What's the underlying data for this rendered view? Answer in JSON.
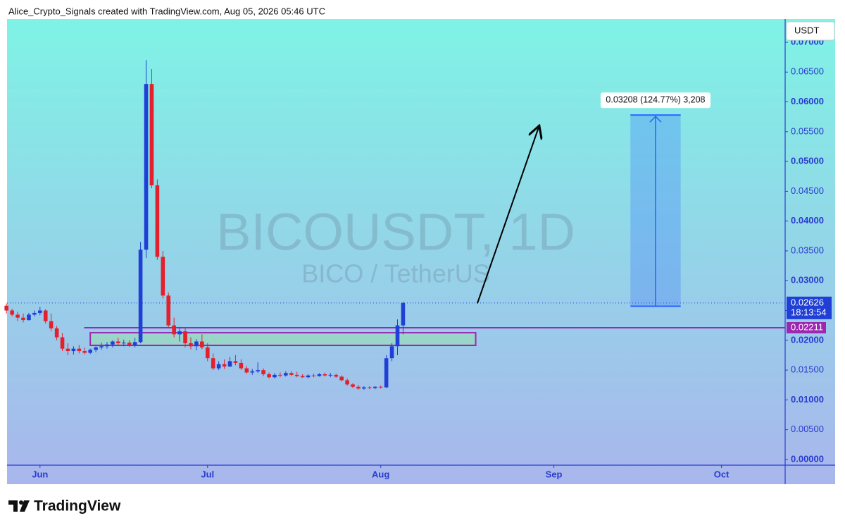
{
  "header": "Alice_Crypto_Signals created with TradingView.com, Aug 05, 2026 05:46 UTC",
  "logo": "TradingView",
  "chart_data": {
    "type": "candlestick",
    "watermark": "BICOUSDT, 1D",
    "watermark_subtitle": "BICO / TetherUS",
    "currency": "USDT",
    "up_color": "#1f3fd6",
    "down_color": "#e3202c",
    "x": [
      -6,
      -5,
      -4,
      -3,
      -2,
      -1,
      0,
      1,
      2,
      3,
      4,
      5,
      6,
      7,
      8,
      9,
      10,
      11,
      12,
      13,
      14,
      15,
      16,
      17,
      18,
      19,
      20,
      21,
      22,
      23,
      24,
      25,
      26,
      27,
      28,
      29,
      30,
      31,
      32,
      33,
      34,
      35,
      36,
      37,
      38,
      39,
      40,
      41,
      42,
      43,
      44,
      45,
      46,
      47,
      48,
      49,
      50,
      51,
      52,
      53,
      54,
      55,
      56,
      57,
      58,
      59,
      60,
      61,
      62,
      63,
      64,
      65
    ],
    "open": [
      0.0258,
      0.025,
      0.0243,
      0.0238,
      0.0234,
      0.0243,
      0.0246,
      0.025,
      0.0232,
      0.022,
      0.0205,
      0.0186,
      0.0182,
      0.0186,
      0.0182,
      0.0179,
      0.0184,
      0.0188,
      0.019,
      0.0193,
      0.0198,
      0.0195,
      0.0196,
      0.0192,
      0.0197,
      0.0352,
      0.063,
      0.046,
      0.034,
      0.0275,
      0.0225,
      0.021,
      0.0215,
      0.0195,
      0.019,
      0.0198,
      0.0188,
      0.017,
      0.0153,
      0.016,
      0.0156,
      0.0165,
      0.0162,
      0.0153,
      0.0146,
      0.0148,
      0.015,
      0.0143,
      0.0138,
      0.0142,
      0.0141,
      0.0145,
      0.0142,
      0.014,
      0.0138,
      0.0141,
      0.014,
      0.0143,
      0.0141,
      0.0142,
      0.0139,
      0.0133,
      0.0126,
      0.0122,
      0.0119,
      0.0121,
      0.012,
      0.0122,
      0.0121,
      0.017,
      0.019,
      0.0225
    ],
    "high": [
      0.0262,
      0.0253,
      0.0248,
      0.0245,
      0.0246,
      0.025,
      0.0256,
      0.0252,
      0.0245,
      0.0224,
      0.0212,
      0.0195,
      0.019,
      0.0192,
      0.0188,
      0.0186,
      0.019,
      0.0196,
      0.0197,
      0.02,
      0.0204,
      0.0201,
      0.02,
      0.0204,
      0.0365,
      0.067,
      0.0655,
      0.047,
      0.035,
      0.028,
      0.0238,
      0.0222,
      0.022,
      0.0205,
      0.0202,
      0.021,
      0.0195,
      0.0178,
      0.0165,
      0.0168,
      0.0172,
      0.0175,
      0.0168,
      0.0157,
      0.0152,
      0.0163,
      0.0153,
      0.0146,
      0.0145,
      0.0146,
      0.0148,
      0.0148,
      0.0147,
      0.0143,
      0.0143,
      0.0144,
      0.0145,
      0.0146,
      0.0145,
      0.0144,
      0.0141,
      0.0136,
      0.0128,
      0.0125,
      0.0123,
      0.0123,
      0.0123,
      0.0124,
      0.0175,
      0.0195,
      0.0235,
      0.0265
    ],
    "low": [
      0.0245,
      0.024,
      0.0232,
      0.023,
      0.0233,
      0.024,
      0.0242,
      0.0228,
      0.0215,
      0.02,
      0.0182,
      0.0175,
      0.0176,
      0.0178,
      0.0176,
      0.0177,
      0.018,
      0.0184,
      0.0186,
      0.0188,
      0.0192,
      0.019,
      0.0189,
      0.0188,
      0.0195,
      0.0338,
      0.0455,
      0.0335,
      0.027,
      0.0222,
      0.0205,
      0.0198,
      0.0188,
      0.0185,
      0.0183,
      0.0185,
      0.0165,
      0.015,
      0.015,
      0.0152,
      0.0155,
      0.0158,
      0.015,
      0.0144,
      0.0142,
      0.0145,
      0.014,
      0.0136,
      0.0136,
      0.0138,
      0.0139,
      0.014,
      0.0138,
      0.0137,
      0.0136,
      0.0138,
      0.0139,
      0.0139,
      0.0138,
      0.0137,
      0.0131,
      0.0124,
      0.012,
      0.0117,
      0.0117,
      0.0118,
      0.0118,
      0.0119,
      0.012,
      0.0165,
      0.0175,
      0.021
    ],
    "close": [
      0.025,
      0.0243,
      0.0238,
      0.0234,
      0.0243,
      0.0246,
      0.025,
      0.0232,
      0.022,
      0.0205,
      0.0186,
      0.0182,
      0.0186,
      0.0182,
      0.0179,
      0.0184,
      0.0188,
      0.019,
      0.0193,
      0.0198,
      0.0195,
      0.0196,
      0.0192,
      0.0197,
      0.0352,
      0.063,
      0.046,
      0.034,
      0.0275,
      0.0225,
      0.021,
      0.0215,
      0.0195,
      0.019,
      0.0198,
      0.0188,
      0.017,
      0.0153,
      0.016,
      0.0156,
      0.0165,
      0.0162,
      0.0153,
      0.0146,
      0.0148,
      0.015,
      0.0143,
      0.0138,
      0.0142,
      0.0141,
      0.0145,
      0.0142,
      0.014,
      0.0138,
      0.0141,
      0.014,
      0.0143,
      0.0141,
      0.0142,
      0.0139,
      0.0133,
      0.0126,
      0.0122,
      0.0119,
      0.0121,
      0.012,
      0.0122,
      0.0121,
      0.017,
      0.019,
      0.0225,
      0.02626
    ],
    "xlim": [
      -5.9,
      133.4
    ],
    "ylim": [
      -0.00095,
      0.0739
    ],
    "xticks": [
      {
        "value": 0,
        "label": "Jun"
      },
      {
        "value": 30,
        "label": "Jul"
      },
      {
        "value": 61,
        "label": "Aug"
      },
      {
        "value": 92,
        "label": "Sep"
      },
      {
        "value": 122,
        "label": "Oct"
      }
    ],
    "yticks": [
      {
        "value": 0,
        "label": "0.00000"
      },
      {
        "value": 0.005,
        "label": "0.00500"
      },
      {
        "value": 0.01,
        "label": "0.01000"
      },
      {
        "value": 0.015,
        "label": "0.01500"
      },
      {
        "value": 0.02,
        "label": "0.02000"
      },
      {
        "value": 0.025,
        "label": "0.02500"
      },
      {
        "value": 0.03,
        "label": "0.03000"
      },
      {
        "value": 0.035,
        "label": "0.03500"
      },
      {
        "value": 0.04,
        "label": "0.04000"
      },
      {
        "value": 0.045,
        "label": "0.04500"
      },
      {
        "value": 0.05,
        "label": "0.05000"
      },
      {
        "value": 0.055,
        "label": "0.05500"
      },
      {
        "value": 0.06,
        "label": "0.06000"
      },
      {
        "value": 0.065,
        "label": "0.06500"
      },
      {
        "value": 0.07,
        "label": "0.07000"
      }
    ],
    "last_price": {
      "value": 0.02626,
      "label": "0.02626",
      "countdown": "18:13:54",
      "color": "#1f3fd6"
    },
    "level": {
      "value": 0.02211,
      "label": "0.02211",
      "x_start": 7.9,
      "color": "#9c27b0"
    },
    "zone": {
      "x": [
        9,
        78
      ],
      "y": [
        0.01915,
        0.02127
      ],
      "color": "#9c27b0"
    },
    "arrow": {
      "x": [
        78.3,
        89.3
      ],
      "y": [
        0.0262,
        0.0558
      ]
    },
    "measure": {
      "x": [
        105.7,
        114.7
      ],
      "y": [
        0.02571,
        0.05779
      ],
      "label": "0.03208 (124.77%) 3,208",
      "color": "#2962ff"
    }
  }
}
